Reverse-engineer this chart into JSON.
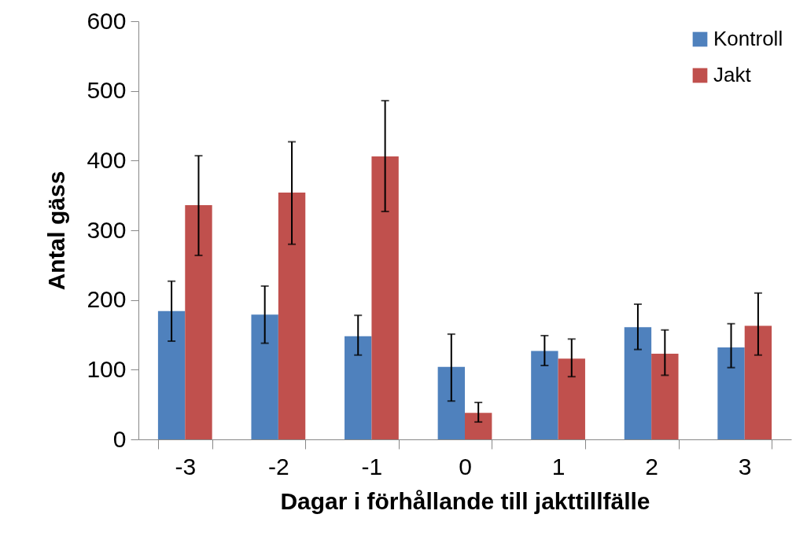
{
  "chart_data": {
    "type": "bar",
    "xlabel": "Dagar  i förhållande  till jakttillfälle",
    "ylabel": "Antal gäss",
    "categories": [
      "-3",
      "-2",
      "-1",
      "0",
      "1",
      "2",
      "3"
    ],
    "series": [
      {
        "name": "Kontroll",
        "color": "#4f81bd",
        "values": [
          184,
          179,
          148,
          104,
          127,
          161,
          132
        ],
        "errors": [
          [
            141,
            227
          ],
          [
            138,
            220
          ],
          [
            121,
            178
          ],
          [
            55,
            151
          ],
          [
            106,
            149
          ],
          [
            129,
            194
          ],
          [
            103,
            166
          ]
        ]
      },
      {
        "name": "Jakt",
        "color": "#c0504d",
        "values": [
          336,
          354,
          406,
          38,
          116,
          123,
          163
        ],
        "errors": [
          [
            264,
            407
          ],
          [
            280,
            427
          ],
          [
            327,
            486
          ],
          [
            25,
            53
          ],
          [
            90,
            144
          ],
          [
            92,
            157
          ],
          [
            121,
            210
          ]
        ]
      }
    ],
    "ylim": [
      0,
      600
    ],
    "yticks": [
      0,
      100,
      200,
      300,
      400,
      500,
      600
    ],
    "grid": false,
    "legend": "top right"
  }
}
